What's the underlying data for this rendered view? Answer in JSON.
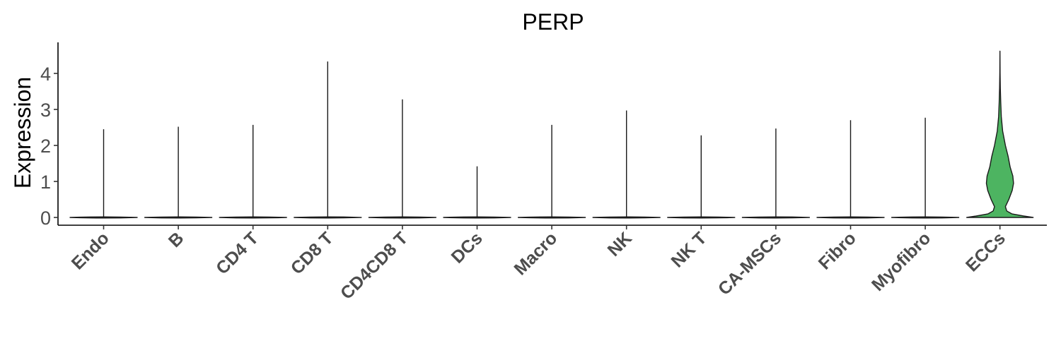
{
  "chart_data": {
    "type": "violin",
    "title": "PERP",
    "xlabel": "",
    "ylabel": "Expression",
    "ylim": [
      -0.22,
      4.85
    ],
    "yticks": [
      0,
      1,
      2,
      3,
      4
    ],
    "ytick_labels": [
      "0",
      "1",
      "2",
      "3",
      "4"
    ],
    "grid": false,
    "legend": "none",
    "categories": [
      "Endo",
      "B",
      "CD4 T",
      "CD8 T",
      "CD4CD8 T",
      "DCs",
      "Macro",
      "NK",
      "NK T",
      "CA-MSCs",
      "Fibro",
      "Myofibro",
      "ECCs"
    ],
    "max_values": [
      2.45,
      2.52,
      2.57,
      4.33,
      3.28,
      1.42,
      2.57,
      2.97,
      2.28,
      2.47,
      2.7,
      2.77,
      4.62
    ],
    "colors": {
      "highlight_fill": "#4db461",
      "default_fill": "#ffffff",
      "outline": "#1a1a1a"
    },
    "highlighted": "ECCs",
    "ecc_density": [
      {
        "y": 0.0,
        "w": 0.98
      },
      {
        "y": 0.04,
        "w": 0.7
      },
      {
        "y": 0.1,
        "w": 0.35
      },
      {
        "y": 0.18,
        "w": 0.2
      },
      {
        "y": 0.3,
        "w": 0.16
      },
      {
        "y": 0.5,
        "w": 0.26
      },
      {
        "y": 0.75,
        "w": 0.36
      },
      {
        "y": 0.95,
        "w": 0.4
      },
      {
        "y": 1.15,
        "w": 0.38
      },
      {
        "y": 1.4,
        "w": 0.3
      },
      {
        "y": 1.7,
        "w": 0.24
      },
      {
        "y": 2.0,
        "w": 0.16
      },
      {
        "y": 2.4,
        "w": 0.08
      },
      {
        "y": 2.8,
        "w": 0.04
      },
      {
        "y": 3.2,
        "w": 0.022
      },
      {
        "y": 3.6,
        "w": 0.01
      },
      {
        "y": 4.0,
        "w": 0.005
      },
      {
        "y": 4.62,
        "w": 0.0
      }
    ]
  }
}
